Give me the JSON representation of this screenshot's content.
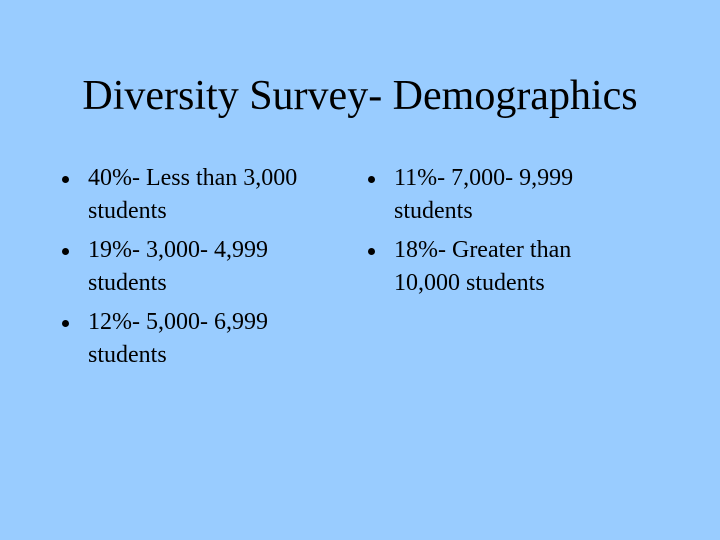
{
  "title": "Diversity Survey- Demographics",
  "left_column": [
    "40%- Less than 3,000 students",
    "19%- 3,000- 4,999 students",
    "12%- 5,000- 6,999 students"
  ],
  "right_column": [
    "11%- 7,000- 9,999 students",
    "18%- Greater than 10,000 students"
  ]
}
